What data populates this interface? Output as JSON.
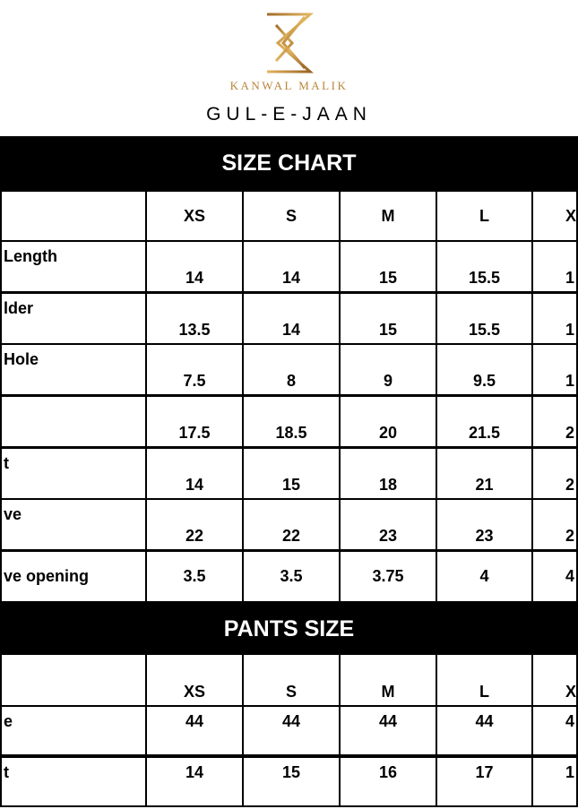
{
  "brand": {
    "logo_letters": "K",
    "name": "KANWAL MALIK",
    "logo_color": "#c08a3e"
  },
  "collection": "GUL-E-JAAN",
  "size_chart": {
    "title": "SIZE CHART",
    "columns": [
      "XS",
      "S",
      "M",
      "L",
      "X"
    ],
    "rows": [
      {
        "label": " Length",
        "values": [
          "14",
          "14",
          "15",
          "15.5",
          "1"
        ]
      },
      {
        "label": "lder",
        "values": [
          "13.5",
          "14",
          "15",
          "15.5",
          "1"
        ]
      },
      {
        "label": "Hole",
        "values": [
          "7.5",
          "8",
          "9",
          "9.5",
          "1"
        ]
      },
      {
        "label": "",
        "values": [
          "17.5",
          "18.5",
          "20",
          "21.5",
          "2"
        ]
      },
      {
        "label": "t",
        "values": [
          "14",
          "15",
          "18",
          "21",
          "2"
        ]
      },
      {
        "label": "ve",
        "values": [
          "22",
          "22",
          "23",
          "23",
          "2"
        ]
      },
      {
        "label": "ve opening",
        "values": [
          "3.5",
          "3.5",
          "3.75",
          "4",
          "4"
        ]
      }
    ]
  },
  "pants_size": {
    "title": "PANTS SIZE",
    "columns": [
      "XS",
      "S",
      "M",
      "L",
      "X"
    ],
    "rows": [
      {
        "label": "e",
        "values": [
          "44",
          "44",
          "44",
          "44",
          "4"
        ]
      },
      {
        "label": "t",
        "values": [
          "14",
          "15",
          "16",
          "17",
          "1"
        ]
      }
    ]
  }
}
